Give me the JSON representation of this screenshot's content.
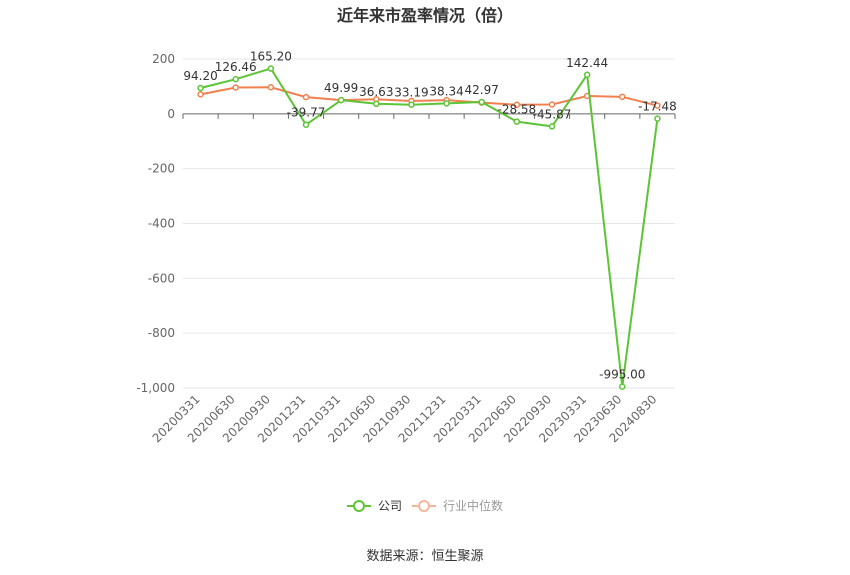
{
  "chart_data": {
    "type": "line",
    "title": "近年来市盈率情况（倍）",
    "source": "数据来源：恒生聚源",
    "xlabel": "",
    "ylabel": "",
    "ylim": [
      -1000,
      200
    ],
    "yticks": [
      200,
      0,
      -200,
      -400,
      -600,
      -800,
      -1000
    ],
    "ytick_labels": [
      "200",
      "0",
      "-200",
      "-400",
      "-600",
      "-800",
      "-1,000"
    ],
    "grid": true,
    "legend_position": "bottom-center",
    "categories": [
      "20200331",
      "20200630",
      "20200930",
      "20201231",
      "20210331",
      "20210630",
      "20210930",
      "20211231",
      "20220331",
      "20220630",
      "20220930",
      "20230331",
      "20230630",
      "20240830"
    ],
    "series": [
      {
        "name": "公司",
        "color": "#5cc435",
        "values": [
          94.2,
          126.46,
          165.2,
          -39.77,
          49.99,
          36.63,
          33.19,
          38.34,
          42.97,
          -28.58,
          -45.87,
          142.44,
          -995.0,
          -17.48
        ],
        "labels": [
          "94.20",
          "126.46",
          "165.20",
          "-39.77",
          "49.99",
          "36.63",
          "33.19",
          "38.34",
          "42.97",
          "-28.58",
          "-45.87",
          "142.44",
          "-995.00",
          "-17.48"
        ]
      },
      {
        "name": "行业中位数",
        "color": "#f08050",
        "values": [
          71,
          96,
          97,
          61,
          50,
          53,
          47,
          50,
          41,
          33,
          34,
          65,
          62,
          30
        ]
      }
    ]
  }
}
